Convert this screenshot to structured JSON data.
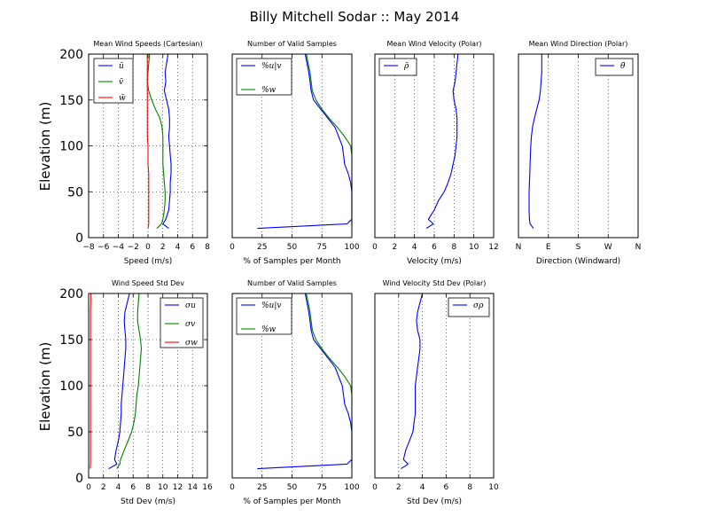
{
  "figure": {
    "title": "Billy Mitchell Sodar :: May 2014",
    "ylabel": "Elevation (m)"
  },
  "chart_data": [
    {
      "type": "line",
      "title": "Mean Wind Speeds (Cartesian)",
      "xlabel": "Speed (m/s)",
      "ylabel": "Elevation (m)",
      "xlim": [
        -8,
        8
      ],
      "ylim": [
        0,
        200
      ],
      "xticks": [
        "−8",
        "−6",
        "−4",
        "−2",
        "0",
        "2",
        "4",
        "6",
        "8"
      ],
      "yticks": [
        "0",
        "50",
        "100",
        "150",
        "200"
      ],
      "grid": true,
      "legend_position": "top-left",
      "series": [
        {
          "name": "ū",
          "color": "#0000ff",
          "x": [
            2.8,
            2.0,
            2.4,
            2.8,
            2.9,
            3.0,
            3.0,
            3.1,
            3.1,
            3.0,
            2.9,
            2.8,
            2.9,
            2.9,
            2.8,
            2.5,
            2.2,
            2.4,
            2.3,
            2.7
          ],
          "y": [
            10,
            15,
            20,
            30,
            40,
            50,
            60,
            70,
            80,
            90,
            100,
            110,
            120,
            130,
            140,
            150,
            160,
            170,
            180,
            200
          ]
        },
        {
          "name": "v̄",
          "color": "#008000",
          "x": [
            1.2,
            1.8,
            2.0,
            2.2,
            2.3,
            2.3,
            2.2,
            2.1,
            2.0,
            2.0,
            2.0,
            2.0,
            1.9,
            1.6,
            1.0,
            0.5,
            0.1,
            -0.1,
            0.0,
            0.2
          ],
          "y": [
            10,
            15,
            20,
            30,
            40,
            50,
            60,
            70,
            80,
            90,
            100,
            110,
            120,
            130,
            140,
            150,
            160,
            170,
            180,
            200
          ]
        },
        {
          "name": "w̄",
          "color": "#ff0000",
          "x": [
            0.0,
            0.1,
            0.1,
            0.1,
            0.1,
            0.1,
            0.1,
            0.1,
            0.0,
            0.0,
            0.0,
            -0.1,
            -0.1,
            -0.1,
            -0.1,
            -0.1,
            -0.1,
            -0.1,
            -0.1,
            -0.1
          ],
          "y": [
            10,
            15,
            20,
            30,
            40,
            50,
            60,
            70,
            80,
            90,
            100,
            110,
            120,
            130,
            140,
            150,
            160,
            170,
            180,
            200
          ]
        }
      ]
    },
    {
      "type": "line",
      "title": "Number of Valid Samples",
      "xlabel": "% of Samples per Month",
      "xlim": [
        0,
        100
      ],
      "ylim": [
        0,
        200
      ],
      "xticks": [
        "0",
        "25",
        "50",
        "75",
        "100"
      ],
      "yticks": [],
      "grid": true,
      "legend_position": "top-left",
      "series": [
        {
          "name": "%u|v",
          "color": "#0000ff",
          "x": [
            21,
            96,
            100,
            100,
            100,
            100,
            99,
            97,
            94,
            93,
            92,
            89,
            86,
            80,
            74,
            68,
            66,
            65,
            64,
            61
          ],
          "y": [
            10,
            15,
            20,
            30,
            40,
            50,
            60,
            70,
            80,
            90,
            100,
            110,
            120,
            130,
            140,
            150,
            160,
            170,
            180,
            200
          ]
        },
        {
          "name": "%w",
          "color": "#008000",
          "x": [
            100,
            100,
            100,
            100,
            100,
            100,
            100,
            100,
            100,
            100,
            99,
            94,
            88,
            81,
            75,
            70,
            67,
            66,
            65,
            62
          ],
          "y": [
            10,
            15,
            20,
            30,
            40,
            50,
            60,
            70,
            80,
            90,
            100,
            110,
            120,
            130,
            140,
            150,
            160,
            170,
            180,
            200
          ]
        }
      ]
    },
    {
      "type": "line",
      "title": "Mean Wind Velocity (Polar)",
      "xlabel": "Velocity (m/s)",
      "xlim": [
        0,
        12
      ],
      "ylim": [
        0,
        200
      ],
      "xticks": [
        "0",
        "2",
        "4",
        "6",
        "8",
        "10",
        "12"
      ],
      "yticks": [],
      "grid": true,
      "legend_position": "top-left",
      "series": [
        {
          "name": "ρ̄",
          "color": "#0000ff",
          "x": [
            5.2,
            5.9,
            5.4,
            6.0,
            6.4,
            7.0,
            7.4,
            7.7,
            7.9,
            8.1,
            8.2,
            8.3,
            8.3,
            8.3,
            8.2,
            8.0,
            7.9,
            8.1,
            8.2,
            8.4
          ],
          "y": [
            10,
            15,
            20,
            30,
            40,
            50,
            60,
            70,
            80,
            90,
            100,
            110,
            120,
            130,
            140,
            150,
            160,
            170,
            180,
            200
          ]
        }
      ]
    },
    {
      "type": "line",
      "title": "Mean Wind Direction (Polar)",
      "xlabel": "Direction (Windward)",
      "xlim": [
        0,
        360
      ],
      "ylim": [
        0,
        200
      ],
      "xticks": [
        "N",
        "E",
        "S",
        "W",
        "N"
      ],
      "yticks": [],
      "grid": true,
      "legend_position": "top-right",
      "series": [
        {
          "name": "θ̄",
          "color": "#0000ff",
          "x": [
            45,
            35,
            33,
            32,
            32,
            32,
            33,
            34,
            35,
            36,
            37,
            39,
            42,
            48,
            55,
            62,
            66,
            68,
            70,
            70
          ],
          "y": [
            10,
            15,
            20,
            30,
            40,
            50,
            60,
            70,
            80,
            90,
            100,
            110,
            120,
            130,
            140,
            150,
            160,
            170,
            180,
            200
          ]
        }
      ]
    },
    {
      "type": "line",
      "title": "Wind Speed Std Dev",
      "xlabel": "Std Dev (m/s)",
      "ylabel": "Elevation (m)",
      "xlim": [
        0,
        16
      ],
      "ylim": [
        0,
        200
      ],
      "xticks": [
        "0",
        "2",
        "4",
        "6",
        "8",
        "10",
        "12",
        "14",
        "16"
      ],
      "yticks": [
        "0",
        "50",
        "100",
        "150",
        "200"
      ],
      "grid": true,
      "legend_position": "top-right",
      "series": [
        {
          "name": "σu",
          "color": "#0000ff",
          "x": [
            2.7,
            3.8,
            3.5,
            3.7,
            4.0,
            4.2,
            4.3,
            4.4,
            4.4,
            4.5,
            4.6,
            4.7,
            4.8,
            4.9,
            5.0,
            5.0,
            4.9,
            4.8,
            4.9,
            5.5
          ],
          "y": [
            10,
            15,
            20,
            30,
            40,
            50,
            60,
            70,
            80,
            90,
            100,
            110,
            120,
            130,
            140,
            150,
            160,
            170,
            180,
            200
          ]
        },
        {
          "name": "σv",
          "color": "#008000",
          "x": [
            3.8,
            4.2,
            4.3,
            4.8,
            5.3,
            5.8,
            6.1,
            6.3,
            6.4,
            6.5,
            6.7,
            6.8,
            6.9,
            7.0,
            7.1,
            7.0,
            6.8,
            6.6,
            6.6,
            6.8
          ],
          "y": [
            10,
            15,
            20,
            30,
            40,
            50,
            60,
            70,
            80,
            90,
            100,
            110,
            120,
            130,
            140,
            150,
            160,
            170,
            180,
            200
          ]
        },
        {
          "name": "σw",
          "color": "#ff0000",
          "x": [
            0.2,
            0.25,
            0.25,
            0.25,
            0.25,
            0.25,
            0.25,
            0.25,
            0.25,
            0.25,
            0.25,
            0.25,
            0.25,
            0.25,
            0.25,
            0.25,
            0.25,
            0.25,
            0.25,
            0.3
          ],
          "y": [
            10,
            15,
            20,
            30,
            40,
            50,
            60,
            70,
            80,
            90,
            100,
            110,
            120,
            130,
            140,
            150,
            160,
            170,
            180,
            200
          ]
        }
      ]
    },
    {
      "type": "line",
      "title": "Number of Valid Samples",
      "xlabel": "% of Samples per Month",
      "xlim": [
        0,
        100
      ],
      "ylim": [
        0,
        200
      ],
      "xticks": [
        "0",
        "25",
        "50",
        "75",
        "100"
      ],
      "yticks": [],
      "grid": true,
      "legend_position": "top-left",
      "series": [
        {
          "name": "%u|v",
          "color": "#0000ff",
          "x": [
            21,
            96,
            100,
            100,
            100,
            100,
            99,
            97,
            94,
            93,
            92,
            89,
            86,
            80,
            74,
            68,
            66,
            65,
            64,
            61
          ],
          "y": [
            10,
            15,
            20,
            30,
            40,
            50,
            60,
            70,
            80,
            90,
            100,
            110,
            120,
            130,
            140,
            150,
            160,
            170,
            180,
            200
          ]
        },
        {
          "name": "%w",
          "color": "#008000",
          "x": [
            100,
            100,
            100,
            100,
            100,
            100,
            100,
            100,
            100,
            100,
            99,
            94,
            88,
            81,
            75,
            70,
            67,
            66,
            65,
            62
          ],
          "y": [
            10,
            15,
            20,
            30,
            40,
            50,
            60,
            70,
            80,
            90,
            100,
            110,
            120,
            130,
            140,
            150,
            160,
            170,
            180,
            200
          ]
        }
      ]
    },
    {
      "type": "line",
      "title": "Wind Velocity Std Dev (Polar)",
      "xlabel": "Std Dev (m/s)",
      "xlim": [
        0,
        10
      ],
      "ylim": [
        0,
        200
      ],
      "xticks": [
        "0",
        "2",
        "4",
        "6",
        "8",
        "10"
      ],
      "yticks": [],
      "grid": true,
      "legend_position": "top-right",
      "series": [
        {
          "name": "σρ",
          "color": "#0000ff",
          "x": [
            2.2,
            2.8,
            2.4,
            2.6,
            2.9,
            3.2,
            3.3,
            3.4,
            3.4,
            3.4,
            3.4,
            3.5,
            3.6,
            3.7,
            3.8,
            3.8,
            3.6,
            3.5,
            3.6,
            4.0
          ],
          "y": [
            10,
            15,
            20,
            30,
            40,
            50,
            60,
            70,
            80,
            90,
            100,
            110,
            120,
            130,
            140,
            150,
            160,
            170,
            180,
            200
          ]
        }
      ]
    }
  ]
}
